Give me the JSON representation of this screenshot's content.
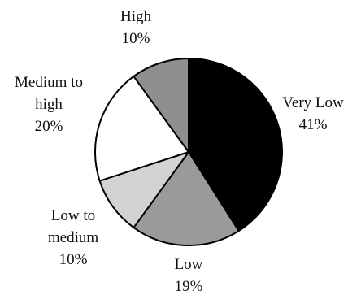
{
  "chart_data": {
    "type": "pie",
    "title": "",
    "start": "12 o'clock",
    "direction": "clockwise",
    "slices": [
      {
        "label_lines": [
          "Very Low"
        ],
        "value_label": "41%",
        "value": 41,
        "color": "#000000"
      },
      {
        "label_lines": [
          "Low"
        ],
        "value_label": "19%",
        "value": 19,
        "color": "#9a9a9a"
      },
      {
        "label_lines": [
          "Low to",
          "medium"
        ],
        "value_label": "10%",
        "value": 10,
        "color": "#d3d3d3"
      },
      {
        "label_lines": [
          "Medium to",
          "high"
        ],
        "value_label": "20%",
        "value": 20,
        "color": "#ffffff"
      },
      {
        "label_lines": [
          "High"
        ],
        "value_label": "10%",
        "value": 10,
        "color": "#8f8f8f"
      }
    ]
  }
}
